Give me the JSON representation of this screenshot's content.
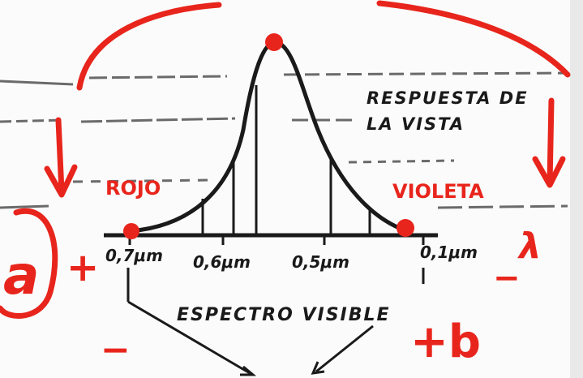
{
  "diagram": {
    "curve_label": [
      "RESPUESTA DE",
      "LA VISTA"
    ],
    "spectrum_label": "ESPECTRO VISIBLE",
    "ticks": [
      "0,7μm",
      "0,6μm",
      "0,5μm",
      "0,1μm"
    ]
  },
  "annotations": {
    "red_label": "ROJO",
    "violet_label": "VIOLETA",
    "lambda_symbol": "λ",
    "circled_letter": "a",
    "plus_left": "+",
    "minus_left": "−",
    "minus_right": "−",
    "plus_b": "+b"
  },
  "colors": {
    "ink": "#1a1a1a",
    "marker": "#e8251c",
    "paper": "#fbfbfb"
  }
}
